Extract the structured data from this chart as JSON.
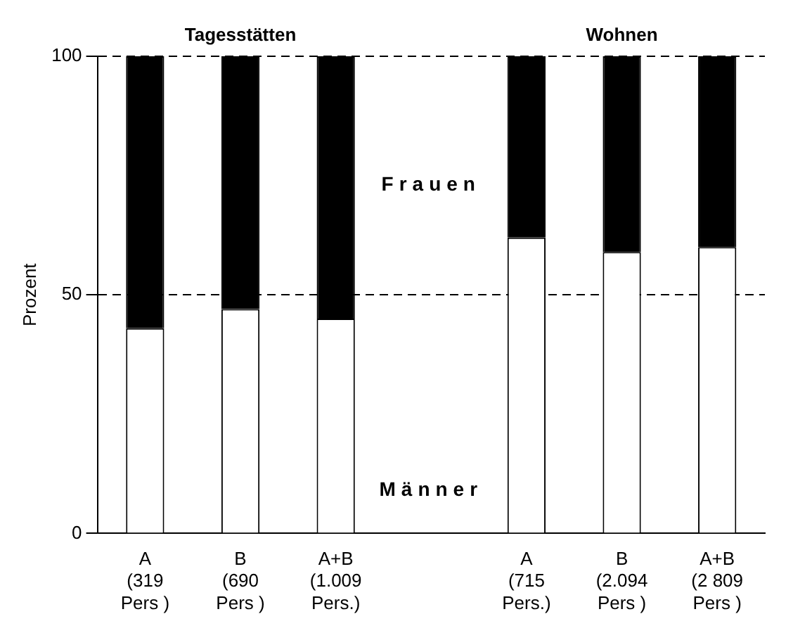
{
  "chart_data": {
    "type": "bar",
    "stacked": true,
    "ylabel": "Prozent",
    "categories": [
      "A\n(319\nPers )",
      "B\n(690\nPers )",
      "A+B\n(1.009\nPers.)",
      null,
      "A\n(715\nPers.)",
      "B\n(2.094\nPers )",
      "A+B\n(2 809\nPers )"
    ],
    "series": [
      {
        "name": "Männer",
        "color": "#ffffff",
        "values": [
          43,
          47,
          45,
          null,
          62,
          59,
          60
        ]
      },
      {
        "name": "Frauen",
        "color": "#000000",
        "values": [
          57,
          53,
          55,
          null,
          38,
          41,
          40
        ]
      }
    ],
    "ylim": [
      0,
      100
    ],
    "yticks": [
      0,
      50,
      100
    ],
    "grid": "y",
    "line_style": "dashed",
    "legend": false,
    "annotations": [
      "Tagesstätten",
      "Wohnen"
    ]
  }
}
